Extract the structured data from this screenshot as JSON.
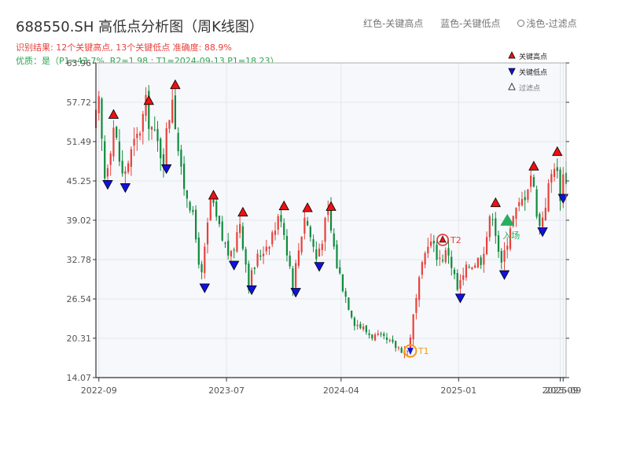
{
  "header": {
    "title": "688550.SH 高低点分析图（周K线图）",
    "result": "识别结果: 12个关键高点, 13个关键低点  准确度: 88.9%",
    "quality": "优质：是（P1=43.7%, R2=1.98 ; T1=2024-09-13 P1=18.23）"
  },
  "legend_top": {
    "red": "红色-关键高点",
    "blue": "蓝色-关键低点",
    "light": "浅色-过滤点"
  },
  "colors": {
    "up": "#e8413c",
    "down": "#0f8a3c",
    "high_marker": "#ee1111",
    "low_marker": "#1111dd",
    "orange": "#f39c12",
    "green_marker": "#27ae60",
    "plot_bg": "#f6f8fb",
    "grid": "#e3e7ee"
  },
  "chart_data": {
    "type": "candlestick",
    "y_ticks": [
      "14.07",
      "20.31",
      "26.54",
      "32.78",
      "39.02",
      "45.25",
      "51.49",
      "57.72",
      "63.96"
    ],
    "ylim": [
      14.07,
      63.96
    ],
    "x_range": [
      "2022-08-26",
      "2025-09-19"
    ],
    "x_ticks": [
      {
        "date": "2022-09-02",
        "label": "2022-09"
      },
      {
        "date": "2023-07-03",
        "label": "2023-07"
      },
      {
        "date": "2024-04-01",
        "label": "2024-04"
      },
      {
        "date": "2025-01-06",
        "label": "2025-01"
      },
      {
        "date": "2025-09-05",
        "label": "2025-09"
      },
      {
        "date": "2025-09-12",
        "label": "2025-09"
      }
    ],
    "price_path": [
      [
        "2022-08-26",
        53
      ],
      [
        "2022-09-09",
        57
      ],
      [
        "2022-09-23",
        46
      ],
      [
        "2022-10-14",
        54
      ],
      [
        "2022-11-04",
        46
      ],
      [
        "2022-12-09",
        52
      ],
      [
        "2022-12-30",
        57
      ],
      [
        "2023-01-20",
        52
      ],
      [
        "2023-02-10",
        49
      ],
      [
        "2023-03-03",
        59.5
      ],
      [
        "2023-03-24",
        46
      ],
      [
        "2023-04-14",
        42
      ],
      [
        "2023-05-12",
        30
      ],
      [
        "2023-06-02",
        42
      ],
      [
        "2023-06-30",
        36
      ],
      [
        "2023-07-21",
        33
      ],
      [
        "2023-08-11",
        39
      ],
      [
        "2023-09-01",
        29
      ],
      [
        "2023-09-22",
        33
      ],
      [
        "2023-10-20",
        36
      ],
      [
        "2023-11-17",
        40
      ],
      [
        "2023-12-15",
        29
      ],
      [
        "2024-01-12",
        40
      ],
      [
        "2024-02-09",
        33
      ],
      [
        "2024-03-08",
        40
      ],
      [
        "2024-03-29",
        32
      ],
      [
        "2024-04-19",
        27
      ],
      [
        "2024-05-10",
        23
      ],
      [
        "2024-06-14",
        21
      ],
      [
        "2024-07-19",
        20
      ],
      [
        "2024-08-16",
        19
      ],
      [
        "2024-09-13",
        18.2
      ],
      [
        "2024-10-11",
        29
      ],
      [
        "2024-11-01",
        36
      ],
      [
        "2024-11-29",
        33
      ],
      [
        "2024-12-20",
        34
      ],
      [
        "2025-01-10",
        28
      ],
      [
        "2025-02-07",
        32
      ],
      [
        "2025-03-07",
        33
      ],
      [
        "2025-04-04",
        40.5
      ],
      [
        "2025-04-25",
        31.5
      ],
      [
        "2025-05-16",
        38.5
      ],
      [
        "2025-06-13",
        42
      ],
      [
        "2025-07-04",
        46.5
      ],
      [
        "2025-07-25",
        38
      ],
      [
        "2025-08-15",
        44
      ],
      [
        "2025-08-29",
        48.5
      ],
      [
        "2025-09-12",
        43.5
      ],
      [
        "2025-09-19",
        46
      ]
    ],
    "key_highs": [
      [
        "2022-10-07",
        54.8
      ],
      [
        "2022-12-30",
        57
      ],
      [
        "2023-03-03",
        59.5
      ],
      [
        "2023-06-02",
        42
      ],
      [
        "2023-08-11",
        39.3
      ],
      [
        "2023-11-17",
        40.3
      ],
      [
        "2024-01-12",
        40
      ],
      [
        "2024-03-08",
        40.2
      ],
      [
        "2025-04-04",
        40.8
      ],
      [
        "2025-07-04",
        46.6
      ],
      [
        "2025-08-29",
        48.9
      ]
    ],
    "key_lows": [
      [
        "2022-09-23",
        45.7
      ],
      [
        "2022-11-04",
        45.2
      ],
      [
        "2023-02-10",
        48.2
      ],
      [
        "2023-05-12",
        29.3
      ],
      [
        "2023-07-21",
        32.9
      ],
      [
        "2023-09-01",
        29
      ],
      [
        "2023-12-15",
        28.6
      ],
      [
        "2024-02-09",
        32.7
      ],
      [
        "2025-01-10",
        27.7
      ],
      [
        "2025-04-25",
        31.4
      ],
      [
        "2025-07-25",
        38.2
      ],
      [
        "2025-09-12",
        43.5
      ]
    ],
    "t1": {
      "date": "2024-09-13",
      "value": 18.3,
      "label": "T1"
    },
    "t2": {
      "date": "2024-11-29",
      "value": 35.9,
      "label": "T2"
    },
    "entry": {
      "date": "2025-05-02",
      "value": 38.9,
      "label": "入场"
    },
    "legend": {
      "high": "关键高点",
      "low": "关键低点",
      "filtered": "过滤点",
      "position": "top-right"
    },
    "grid": true
  }
}
